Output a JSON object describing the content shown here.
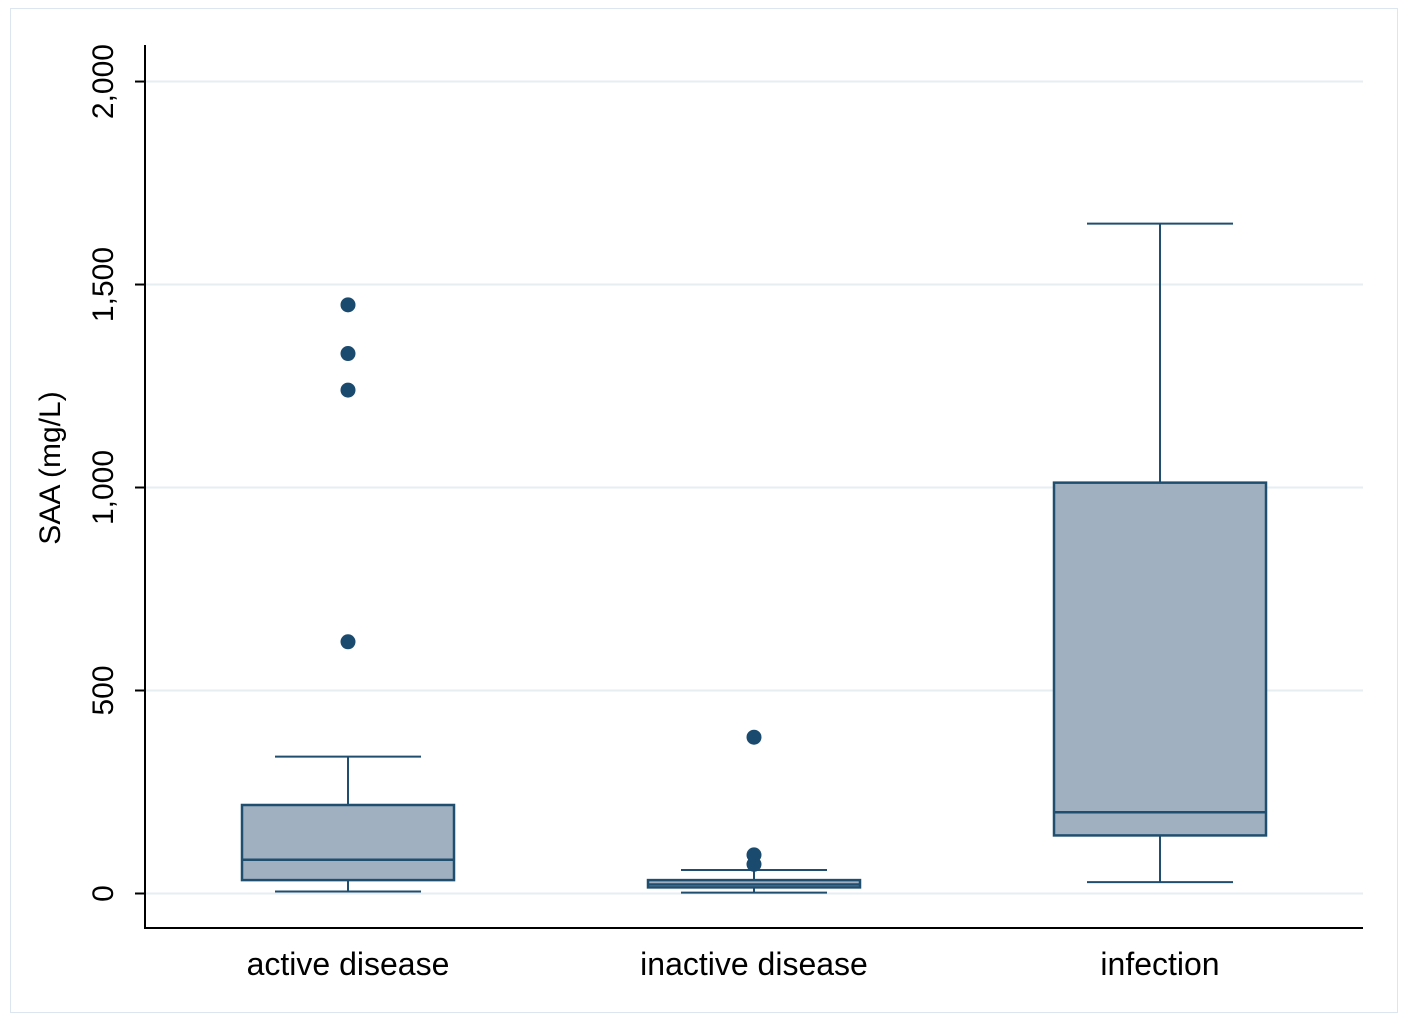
{
  "chart_data": {
    "type": "boxplot",
    "title": "",
    "xlabel": "",
    "ylabel": "SAA (mg/L)",
    "ylim": [
      -85,
      2090
    ],
    "yticks": [
      0,
      500,
      1000,
      1500,
      2000
    ],
    "ytick_labels": [
      "0",
      "500",
      "1,000",
      "1,500",
      "2,000"
    ],
    "grid": true,
    "categories": [
      "active disease",
      "inactive disease",
      "infection"
    ],
    "boxes": [
      {
        "name": "active disease",
        "whisker_low": 5,
        "q1": 33,
        "median": 83,
        "q3": 218,
        "whisker_high": 337,
        "outliers": [
          620,
          1240,
          1330,
          1450
        ]
      },
      {
        "name": "inactive disease",
        "whisker_low": 2,
        "q1": 15,
        "median": 22,
        "q3": 33,
        "whisker_high": 58,
        "outliers": [
          72,
          95,
          385
        ]
      },
      {
        "name": "infection",
        "whisker_low": 28,
        "q1": 143,
        "median": 200,
        "q3": 1012,
        "whisker_high": 1650,
        "outliers": []
      }
    ],
    "colors": {
      "box_fill": "#a0b0c0",
      "box_stroke": "#1f4e6e",
      "marker": "#1a4a6e",
      "grid": "#e6eef2",
      "axis": "#000000"
    }
  }
}
